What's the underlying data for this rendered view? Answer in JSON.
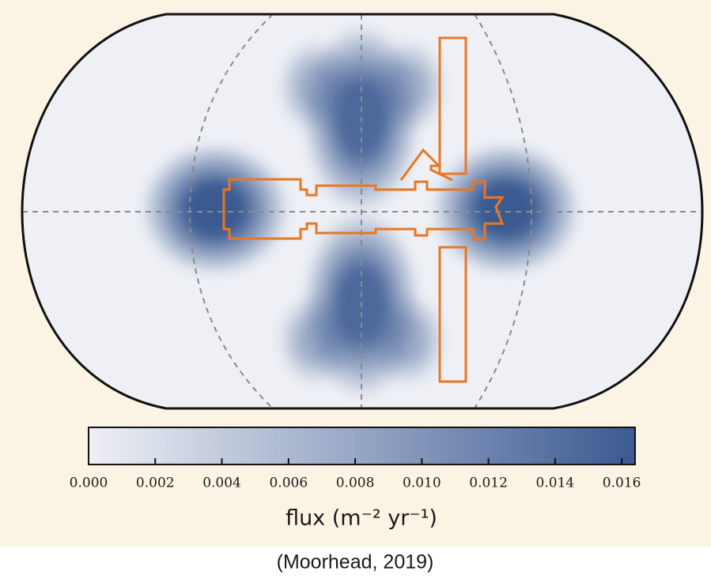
{
  "chart_data": {
    "type": "heatmap",
    "cmap": [
      "#eef0f5",
      "#3b5a92"
    ],
    "clim": [
      0,
      0.0164
    ],
    "cticks": [
      {
        "value": 0,
        "label": "0.000"
      },
      {
        "value": 0.002,
        "label": "0.002"
      },
      {
        "value": 0.004,
        "label": "0.004"
      },
      {
        "value": 0.006,
        "label": "0.006"
      },
      {
        "value": 0.008,
        "label": "0.008"
      },
      {
        "value": 0.01,
        "label": "0.010"
      },
      {
        "value": 0.012,
        "label": "0.012"
      },
      {
        "value": 0.014,
        "label": "0.014"
      },
      {
        "value": 0.016,
        "label": "0.016"
      }
    ],
    "colorbar_label": "flux (m⁻² yr⁻¹)",
    "caption": "(Moorhead, 2019)"
  }
}
